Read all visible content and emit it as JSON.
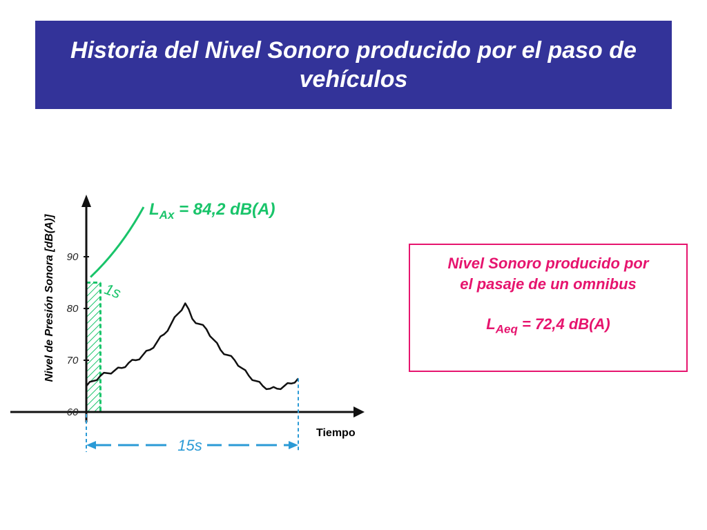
{
  "header": {
    "title": "Historia del Nivel Sonoro producido por el paso de vehículos"
  },
  "annotations": {
    "lax_prefix": "L",
    "lax_sub": "Ax",
    "lax_suffix": " = 84,2 dB(A)",
    "duration_1s": "1s",
    "duration_15s": "15s"
  },
  "info_box": {
    "line1": "Nivel Sonoro producido por",
    "line2": "el pasaje de un omnibus",
    "laeq_prefix": "L",
    "laeq_sub": "Aeq",
    "laeq_suffix": " = 72,4  dB(A)"
  },
  "colors": {
    "title_bg": "#333399",
    "lax_green": "#19c46a",
    "info_red": "#e6146e",
    "span_blue": "#2a9ad6",
    "curve": "#111111"
  },
  "chart_data": {
    "type": "line",
    "title": "",
    "ylabel": "Nivel de Presión Sonora [dB(A)]",
    "xlabel": "Tiempo",
    "yticks": [
      60,
      70,
      80,
      90
    ],
    "ylim": [
      60,
      98
    ],
    "xlim": [
      0,
      19
    ],
    "series": [
      {
        "x": [
          0,
          0.5,
          1,
          1.5,
          2,
          2.5,
          3,
          3.5,
          4,
          4.5,
          5,
          5.5,
          6,
          6.5,
          7,
          7.5,
          8,
          8.5,
          9,
          9.5,
          10,
          10.5,
          11,
          11.5,
          12,
          12.5,
          13,
          13.5,
          14,
          14.5,
          15
        ],
        "values": [
          65,
          66,
          67,
          67.5,
          68,
          68.5,
          69.5,
          70,
          71,
          72,
          73.5,
          75,
          77,
          79,
          81,
          78,
          77,
          76,
          74,
          72,
          71,
          70,
          68.5,
          67,
          66,
          65,
          64.5,
          64.5,
          65,
          65.5,
          66.5
        ]
      }
    ],
    "highlight": {
      "x_start": 0,
      "x_end": 1,
      "y_top": 85
    }
  }
}
